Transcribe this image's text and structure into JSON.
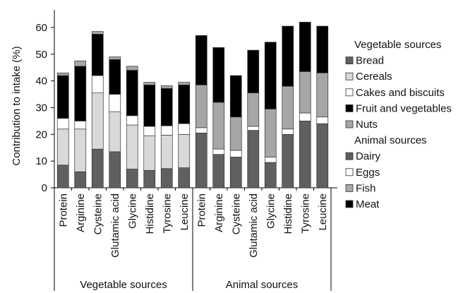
{
  "chart_data": {
    "type": "bar",
    "stacked": true,
    "ylabel": "Contribution to intake (%)",
    "ylim": [
      0,
      65
    ],
    "yticks": [
      0,
      10,
      20,
      30,
      40,
      50,
      60
    ],
    "grid": false,
    "legend_position": "right",
    "groups": [
      {
        "name": "Vegetable sources",
        "categories": [
          "Protein",
          "Arginine",
          "Cysteine",
          "Glutamic acid",
          "Glycine",
          "Histidine",
          "Tyrosine",
          "Leucine"
        ],
        "legend_title": "Vegetable sources",
        "series": [
          {
            "name": "Bread",
            "color": "#606060",
            "values": [
              8.5,
              6.0,
              14.5,
              13.5,
              7.0,
              6.5,
              7.2,
              7.5
            ]
          },
          {
            "name": "Cereals",
            "color": "#d9d9d9",
            "values": [
              13.5,
              16.0,
              21.0,
              15.0,
              16.5,
              13.0,
              12.5,
              12.5
            ]
          },
          {
            "name": "Cakes and biscuits",
            "color": "#ffffff",
            "values": [
              4.0,
              3.0,
              6.5,
              6.5,
              3.5,
              3.5,
              3.5,
              4.0
            ]
          },
          {
            "name": "Fruit and vegetables",
            "color": "#000000",
            "values": [
              16.0,
              20.5,
              15.5,
              13.0,
              17.0,
              15.5,
              14.0,
              14.5
            ]
          },
          {
            "name": "Nuts",
            "color": "#a6a6a6",
            "values": [
              1.0,
              2.0,
              1.0,
              1.0,
              1.5,
              1.0,
              1.0,
              1.0
            ]
          }
        ]
      },
      {
        "name": "Animal sources",
        "categories": [
          "Protein",
          "Arginine",
          "Cysteine",
          "Glutamic acid",
          "Glycine",
          "Histidine",
          "Tyrosine",
          "Leucine"
        ],
        "legend_title": "Animal sources",
        "series": [
          {
            "name": "Dairy",
            "color": "#606060",
            "values": [
              20.5,
              12.5,
              11.5,
              21.5,
              9.5,
              20.0,
              25.0,
              24.0
            ]
          },
          {
            "name": "Eggs",
            "color": "#ffffff",
            "values": [
              2.0,
              2.0,
              2.5,
              1.5,
              2.0,
              2.0,
              3.0,
              2.5
            ]
          },
          {
            "name": "Fish",
            "color": "#a6a6a6",
            "values": [
              16.0,
              17.5,
              12.5,
              12.5,
              18.0,
              16.0,
              15.5,
              16.5
            ]
          },
          {
            "name": "Meat",
            "color": "#000000",
            "values": [
              18.5,
              20.5,
              15.5,
              16.0,
              25.0,
              22.5,
              18.5,
              17.5
            ]
          }
        ]
      }
    ]
  }
}
